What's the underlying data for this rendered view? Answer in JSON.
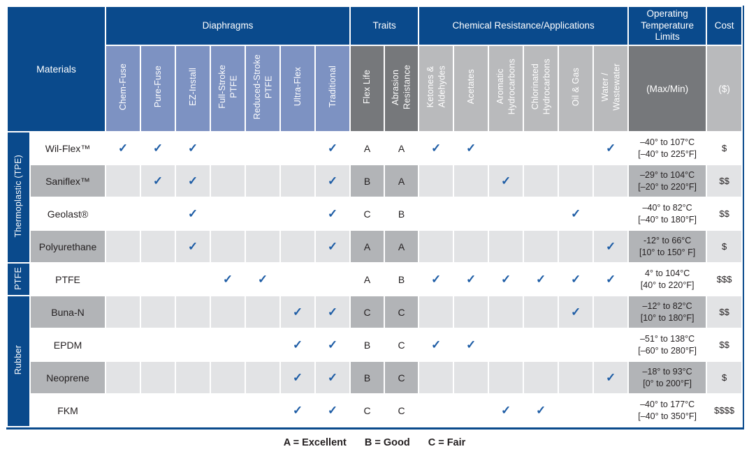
{
  "header": {
    "materials_label": "Materials",
    "groups": [
      "Diaphragms",
      "Traits",
      "Chemical Resistance/Applications",
      "Operating\nTemperature\nLimits",
      "Cost"
    ],
    "diaphragm_columns": [
      "Chem-Fuse",
      "Pure-Fuse",
      "EZ-Install",
      "Full-Stroke\nPTFE",
      "Reduced-Stroke\nPTFE",
      "Ultra-Flex",
      "Traditional"
    ],
    "trait_columns": [
      "Flex Life",
      "Abrasion\nResistance"
    ],
    "chemical_columns": [
      "Ketones &\nAldehydes",
      "Acetates",
      "Aromatic\nHydrocarbons",
      "Chlorinated\nHydrocarbons",
      "Oil & Gas",
      "Water /\nWastewater"
    ],
    "temp_column": "(Max/Min)",
    "cost_column": "($)"
  },
  "groups": [
    {
      "label": "Thermoplastic (TPE)",
      "rows": [
        {
          "material": "Wil-Flex™",
          "diaphragms": [
            1,
            1,
            1,
            0,
            0,
            0,
            1
          ],
          "flex_life": "A",
          "abrasion": "A",
          "chemicals": [
            1,
            1,
            0,
            0,
            0,
            1
          ],
          "temp": "–40° to 107°C\n[–40° to 225°F]",
          "cost": "$"
        },
        {
          "material": "Saniflex™",
          "diaphragms": [
            0,
            1,
            1,
            0,
            0,
            0,
            1
          ],
          "flex_life": "B",
          "abrasion": "A",
          "chemicals": [
            0,
            0,
            1,
            0,
            0,
            0
          ],
          "temp": "–29° to 104°C\n[–20° to 220°F]",
          "cost": "$$"
        },
        {
          "material": "Geolast®",
          "diaphragms": [
            0,
            0,
            1,
            0,
            0,
            0,
            1
          ],
          "flex_life": "C",
          "abrasion": "B",
          "chemicals": [
            0,
            0,
            0,
            0,
            1,
            0
          ],
          "temp": "–40° to 82°C\n[–40° to 180°F]",
          "cost": "$$"
        },
        {
          "material": "Polyurethane",
          "diaphragms": [
            0,
            0,
            1,
            0,
            0,
            0,
            1
          ],
          "flex_life": "A",
          "abrasion": "A",
          "chemicals": [
            0,
            0,
            0,
            0,
            0,
            1
          ],
          "temp": "-12° to 66°C\n[10° to 150° F]",
          "cost": "$"
        }
      ]
    },
    {
      "label": "PTFE",
      "rows": [
        {
          "material": "PTFE",
          "diaphragms": [
            0,
            0,
            0,
            1,
            1,
            0,
            0
          ],
          "flex_life": "A",
          "abrasion": "B",
          "chemicals": [
            1,
            1,
            1,
            1,
            1,
            1
          ],
          "temp": "4° to 104°C\n[40° to 220°F]",
          "cost": "$$$"
        }
      ]
    },
    {
      "label": "Rubber",
      "rows": [
        {
          "material": "Buna-N",
          "diaphragms": [
            0,
            0,
            0,
            0,
            0,
            1,
            1
          ],
          "flex_life": "C",
          "abrasion": "C",
          "chemicals": [
            0,
            0,
            0,
            0,
            1,
            0
          ],
          "temp": "–12° to 82°C\n[10° to 180°F]",
          "cost": "$$"
        },
        {
          "material": "EPDM",
          "diaphragms": [
            0,
            0,
            0,
            0,
            0,
            1,
            1
          ],
          "flex_life": "B",
          "abrasion": "C",
          "chemicals": [
            1,
            1,
            0,
            0,
            0,
            0
          ],
          "temp": "–51° to 138°C\n[–60° to 280°F]",
          "cost": "$$"
        },
        {
          "material": "Neoprene",
          "diaphragms": [
            0,
            0,
            0,
            0,
            0,
            1,
            1
          ],
          "flex_life": "B",
          "abrasion": "C",
          "chemicals": [
            0,
            0,
            0,
            0,
            0,
            1
          ],
          "temp": "–18° to 93°C\n[0° to 200°F]",
          "cost": "$"
        },
        {
          "material": "FKM",
          "diaphragms": [
            0,
            0,
            0,
            0,
            0,
            1,
            1
          ],
          "flex_life": "C",
          "abrasion": "C",
          "chemicals": [
            0,
            0,
            1,
            1,
            0,
            0
          ],
          "temp": "–40° to 177°C\n[–40° to 350°F]",
          "cost": "$$$$"
        }
      ]
    }
  ],
  "legend": [
    "A = Excellent",
    "B = Good",
    "C = Fair"
  ],
  "check_glyph": "✓",
  "colors": {
    "navy": "#0a4a8c",
    "column_blue": "#7d92c2",
    "header_dark_gray": "#76787b",
    "header_light_gray": "#b9babc",
    "row_light_gray": "#e2e3e5",
    "row_medium_gray": "#b2b4b7",
    "check_blue": "#1d5ca5",
    "text_dark": "#231f20"
  }
}
